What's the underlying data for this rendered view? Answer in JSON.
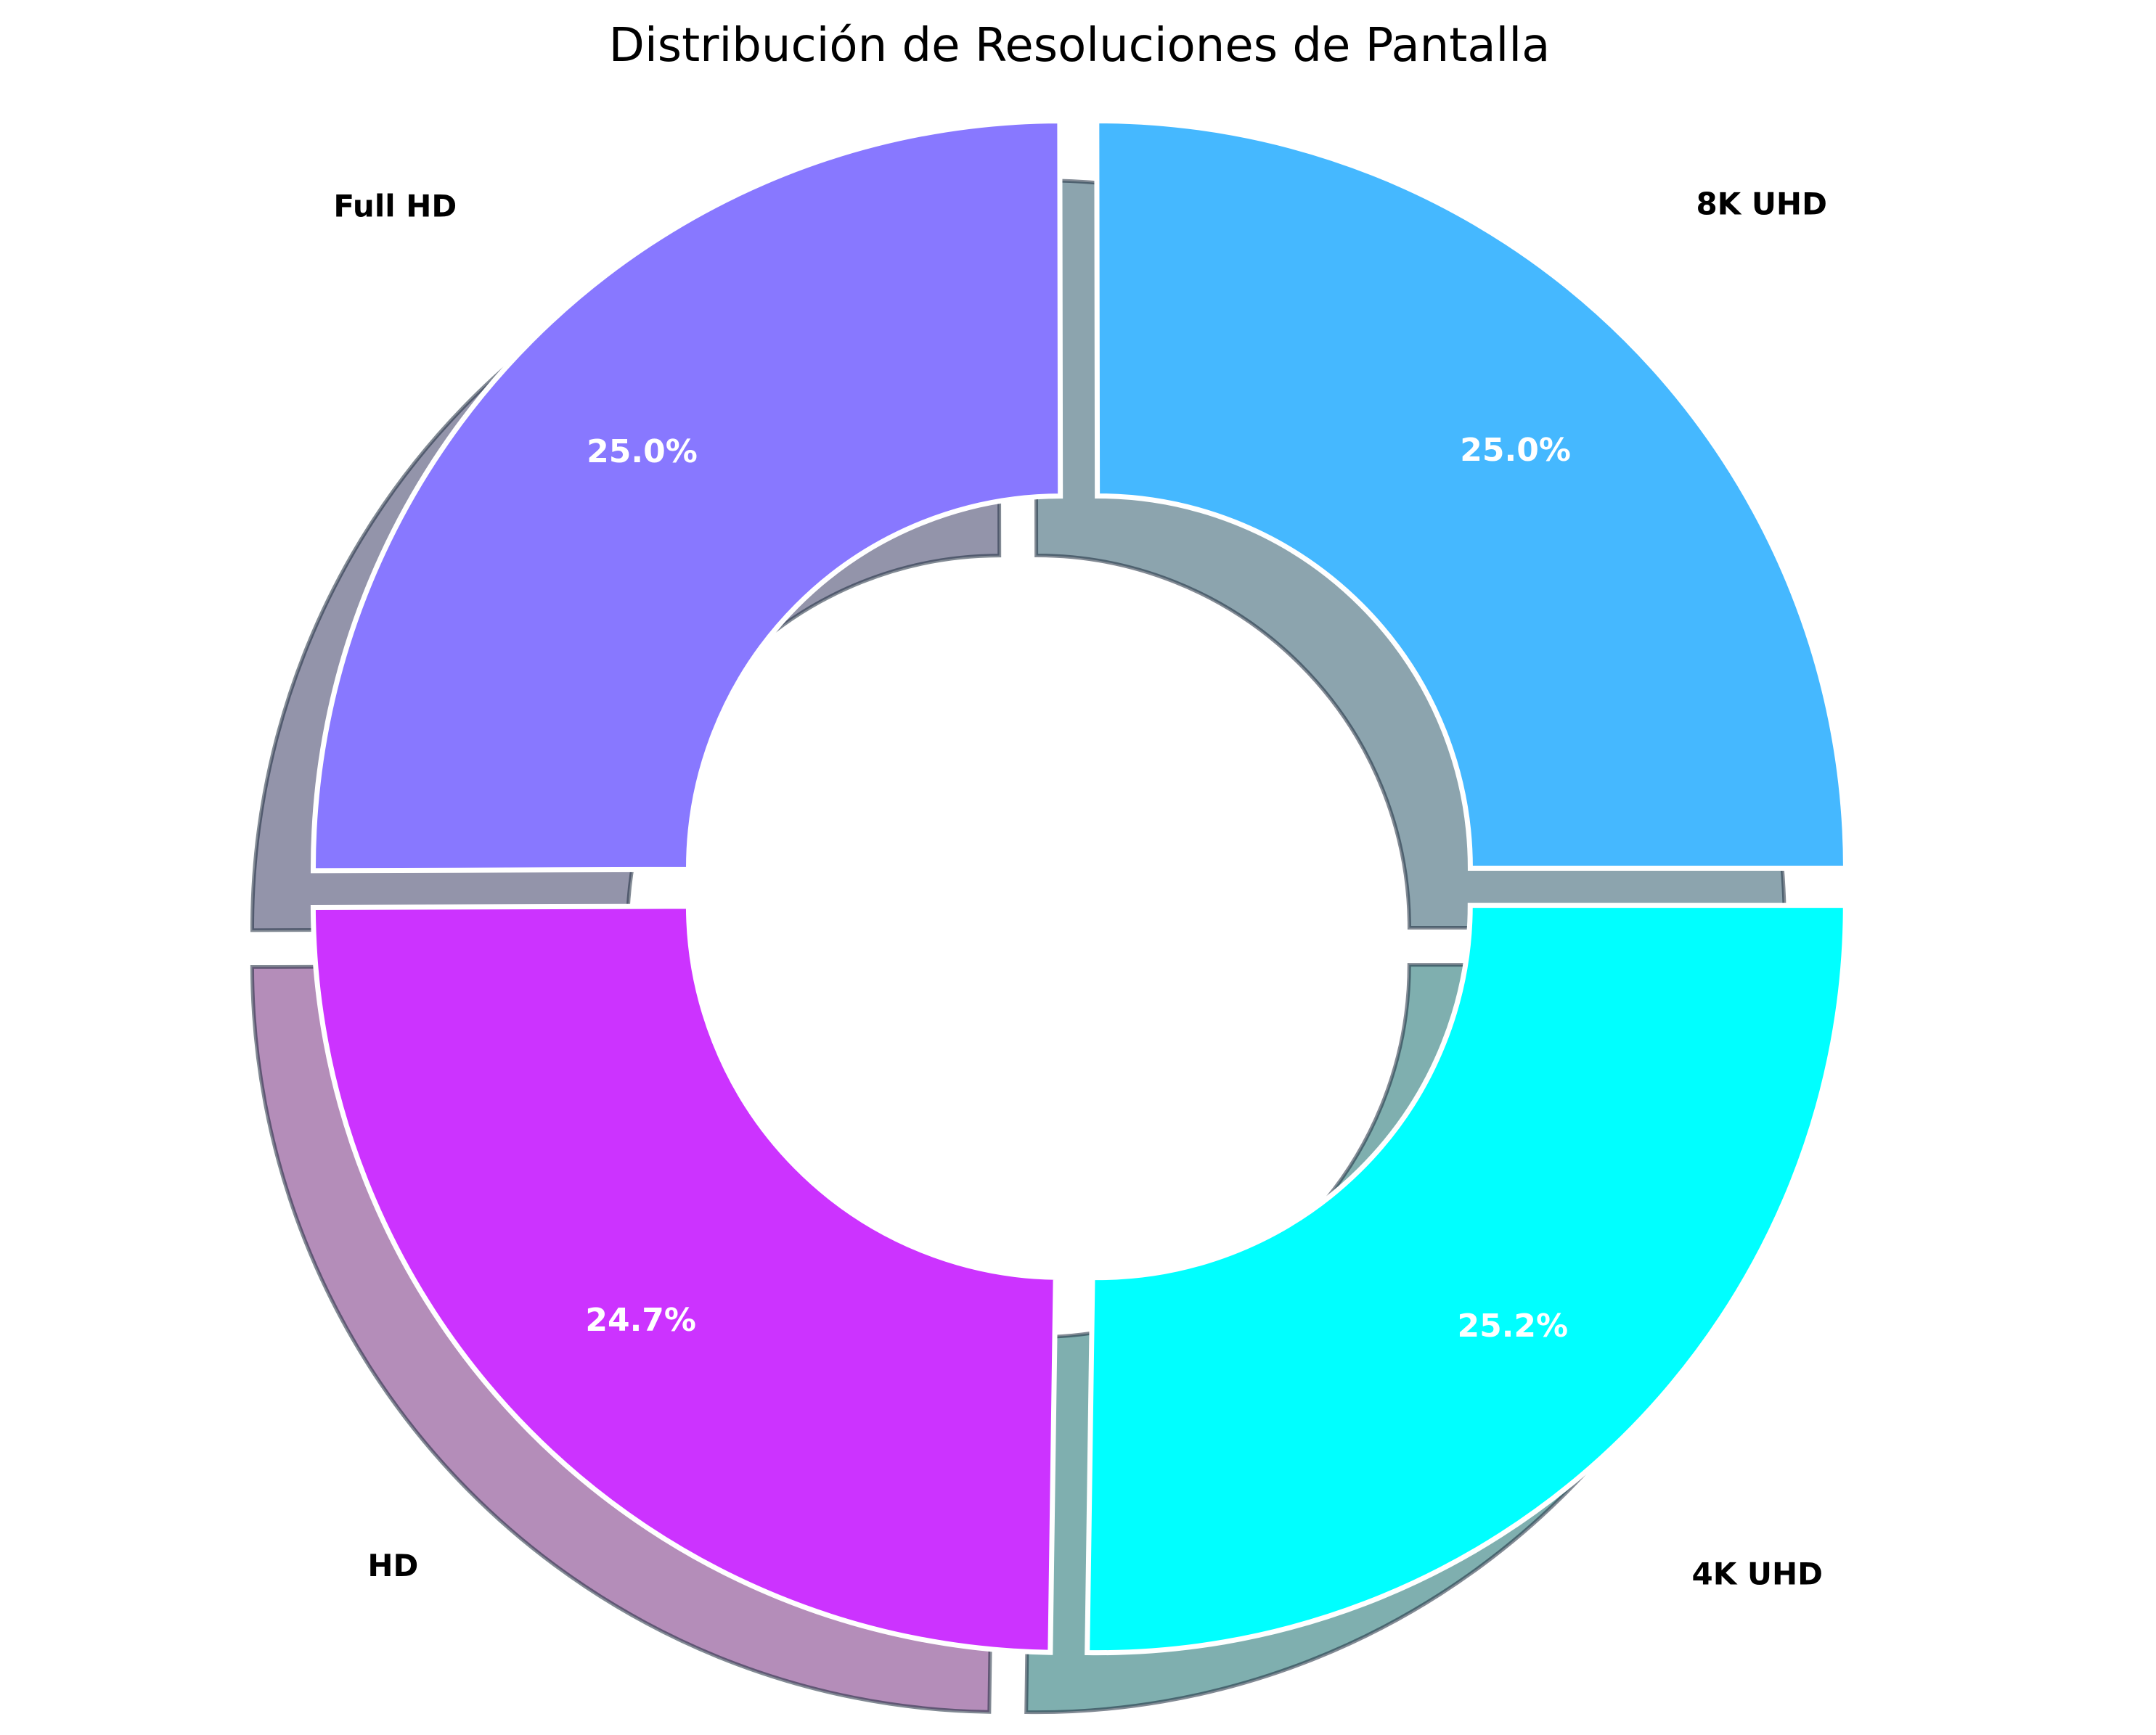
{
  "chart_data": {
    "type": "pie",
    "title": "Distribución de Resoluciones de Pantalla",
    "donut": true,
    "categories": [
      "4K UHD",
      "HD",
      "Full HD",
      "8K UHD"
    ],
    "values": [
      25.2,
      24.7,
      25.0,
      25.0
    ],
    "percent_labels": [
      "25.2%",
      "24.7%",
      "25.0%",
      "25.0%"
    ],
    "colors": [
      "#00ffff",
      "#cc33ff",
      "#8878ff",
      "#45b8ff"
    ],
    "shadow": true,
    "exploded": true,
    "legend": "none"
  }
}
